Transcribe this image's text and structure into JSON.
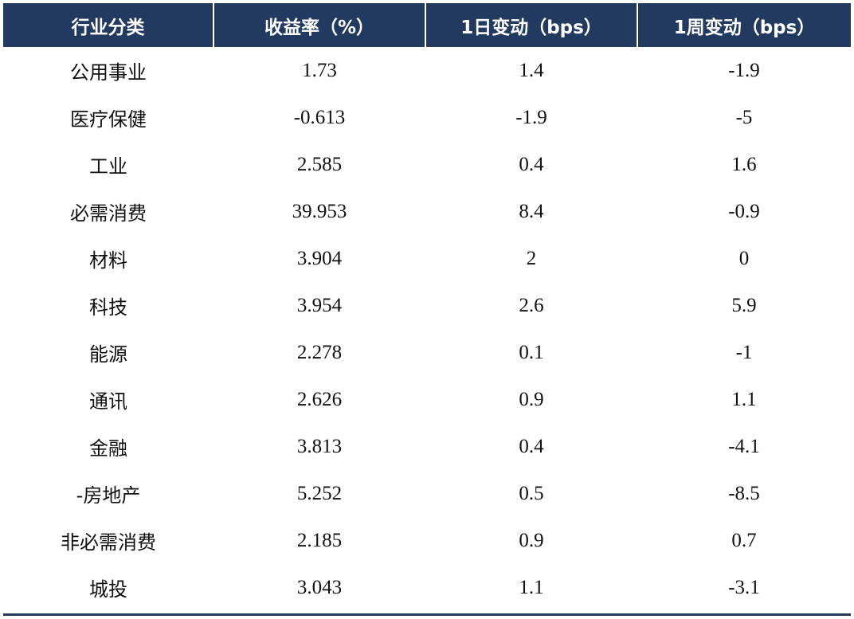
{
  "table": {
    "headers": [
      "行业分类",
      "收益率（%）",
      "1日变动（bps）",
      "1周变动（bps）"
    ],
    "rows": [
      {
        "category": "公用事业",
        "yield": "1.73",
        "change_1d": "1.4",
        "change_1w": "-1.9"
      },
      {
        "category": "医疗保健",
        "yield": "-0.613",
        "change_1d": "-1.9",
        "change_1w": "-5"
      },
      {
        "category": "工业",
        "yield": "2.585",
        "change_1d": "0.4",
        "change_1w": "1.6"
      },
      {
        "category": "必需消费",
        "yield": "39.953",
        "change_1d": "8.4",
        "change_1w": "-0.9"
      },
      {
        "category": "材料",
        "yield": "3.904",
        "change_1d": "2",
        "change_1w": "0"
      },
      {
        "category": "科技",
        "yield": "3.954",
        "change_1d": "2.6",
        "change_1w": "5.9"
      },
      {
        "category": "能源",
        "yield": "2.278",
        "change_1d": "0.1",
        "change_1w": "-1"
      },
      {
        "category": "通讯",
        "yield": "2.626",
        "change_1d": "0.9",
        "change_1w": "1.1"
      },
      {
        "category": "金融",
        "yield": "3.813",
        "change_1d": "0.4",
        "change_1w": "-4.1"
      },
      {
        "category": "-房地产",
        "yield": "5.252",
        "change_1d": "0.5",
        "change_1w": "-8.5"
      },
      {
        "category": "非必需消费",
        "yield": "2.185",
        "change_1d": "0.9",
        "change_1w": "0.7"
      },
      {
        "category": "城投",
        "yield": "3.043",
        "change_1d": "1.1",
        "change_1w": "-3.1"
      }
    ]
  },
  "colors": {
    "header_background": "#233a60",
    "header_text": "#ffffff",
    "body_text": "#111111",
    "rule": "#233a60"
  }
}
